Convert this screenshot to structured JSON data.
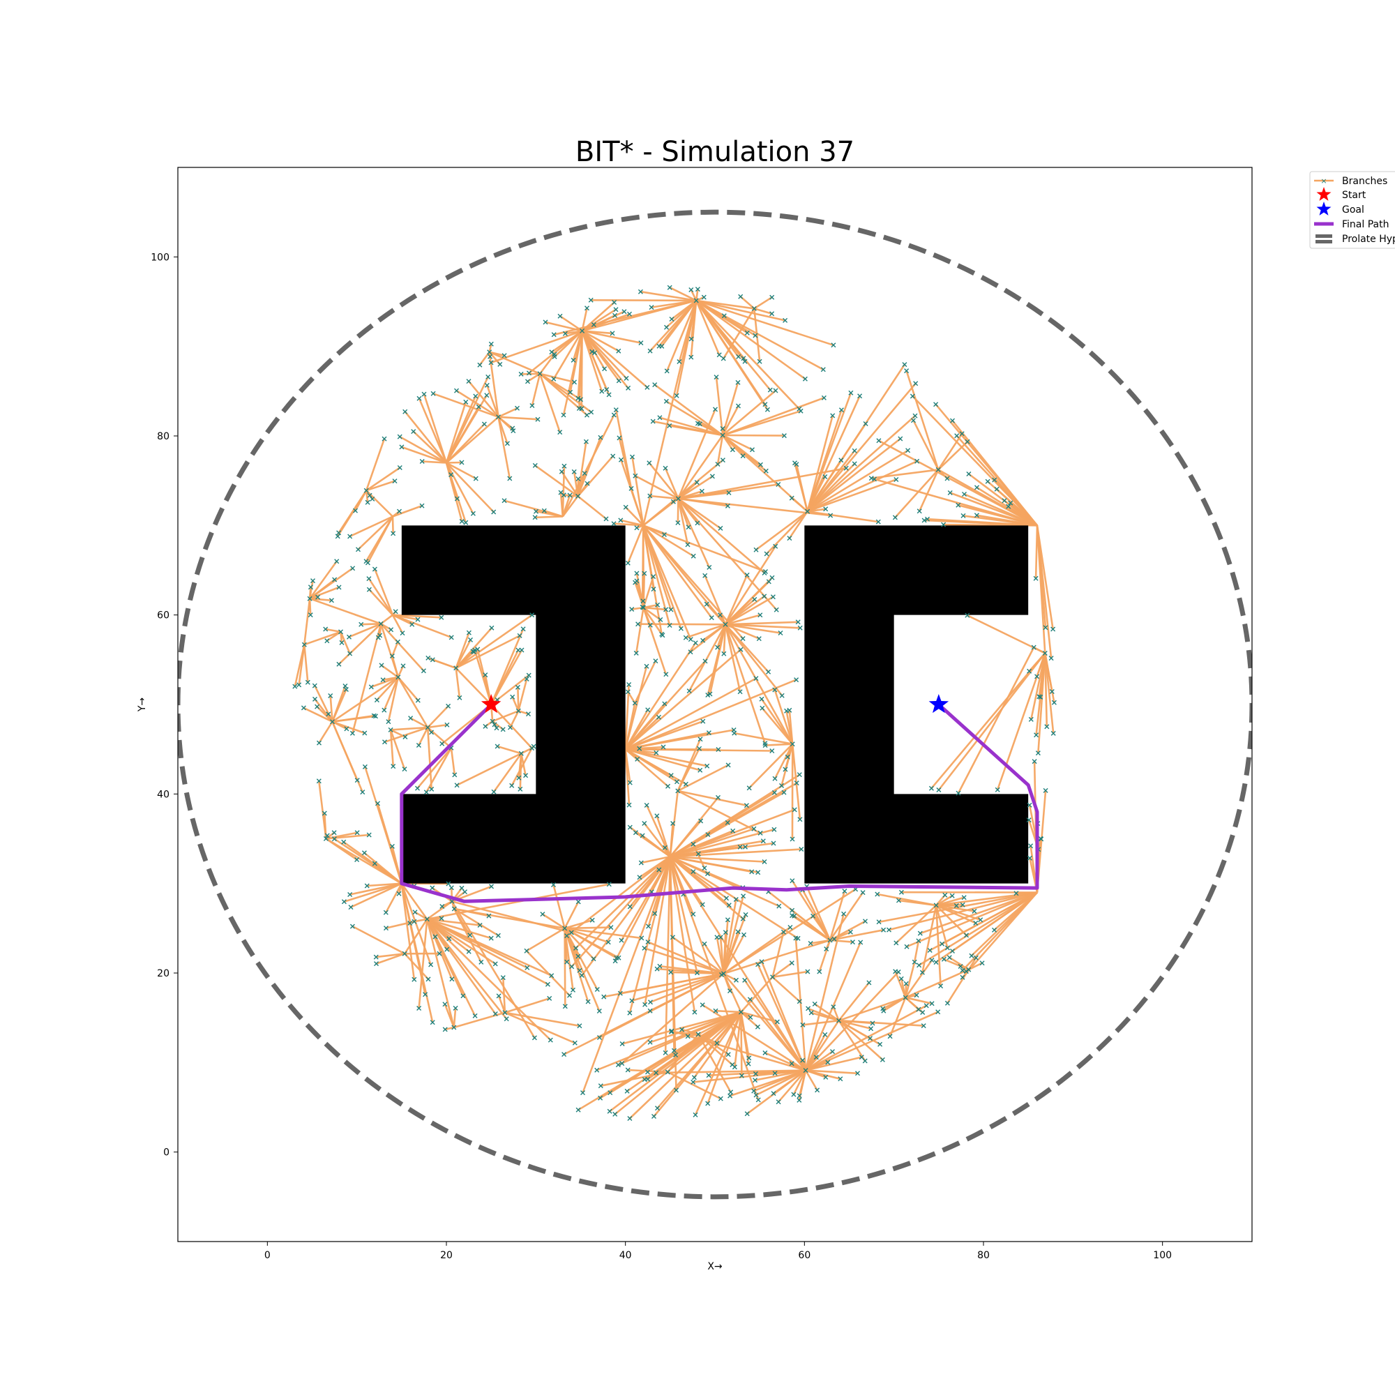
{
  "chart_data": {
    "type": "scatter",
    "title": "BIT* - Simulation 37",
    "xlabel": "X→",
    "ylabel": "Y→",
    "xlim": [
      -10,
      110
    ],
    "ylim": [
      -10,
      110
    ],
    "xticks": [
      0,
      20,
      40,
      60,
      80,
      100
    ],
    "yticks": [
      0,
      20,
      40,
      60,
      80,
      100
    ],
    "grid": false,
    "legend_position": "outside-top-right",
    "legend": [
      "Branches",
      "Start",
      "Goal",
      "Final Path",
      "Prolate Hyp"
    ],
    "colors": {
      "branch_line": "#f4a460",
      "branch_marker": "#1e7f7a",
      "start": "#ff0000",
      "goal": "#0000ff",
      "final_path": "#9932cc",
      "ellipse": "#666666",
      "obstacle": "#000000"
    },
    "start": [
      25,
      50
    ],
    "goal": [
      75,
      50
    ],
    "obstacles": [
      [
        [
          15,
          70
        ],
        [
          40,
          70
        ],
        [
          40,
          30
        ],
        [
          15,
          30
        ],
        [
          15,
          40
        ],
        [
          30,
          40
        ],
        [
          30,
          60
        ],
        [
          15,
          60
        ]
      ],
      [
        [
          60,
          70
        ],
        [
          85,
          70
        ],
        [
          85,
          60
        ],
        [
          70,
          60
        ],
        [
          70,
          40
        ],
        [
          85,
          40
        ],
        [
          85,
          30
        ],
        [
          60,
          30
        ]
      ]
    ],
    "final_path": [
      [
        25,
        50
      ],
      [
        15,
        40
      ],
      [
        15,
        30
      ],
      [
        22,
        28
      ],
      [
        40,
        28.5
      ],
      [
        52,
        29.5
      ],
      [
        58,
        29.3
      ],
      [
        65,
        29.7
      ],
      [
        86,
        29.5
      ],
      [
        86,
        38
      ],
      [
        85,
        41
      ],
      [
        75,
        50
      ]
    ],
    "ellipse": {
      "center": [
        50,
        50
      ],
      "rx": 60,
      "ry": 55
    },
    "branch_hubs": [
      [
        25,
        50
      ],
      [
        15,
        30
      ],
      [
        14,
        71
      ],
      [
        14,
        60
      ],
      [
        42,
        70
      ],
      [
        45,
        33
      ],
      [
        40,
        45
      ],
      [
        33,
        71
      ],
      [
        20,
        77
      ],
      [
        86,
        70
      ],
      [
        86,
        29
      ]
    ],
    "branch_count": 900,
    "random_seed": 37
  }
}
